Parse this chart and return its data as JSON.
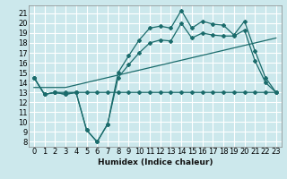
{
  "xlabel": "Humidex (Indice chaleur)",
  "bg_color": "#cce8ec",
  "grid_color": "#ffffff",
  "line_color": "#1a6b6b",
  "xlim": [
    -0.5,
    23.5
  ],
  "ylim": [
    7.5,
    21.8
  ],
  "xticks": [
    0,
    1,
    2,
    3,
    4,
    5,
    6,
    7,
    8,
    9,
    10,
    11,
    12,
    13,
    14,
    15,
    16,
    17,
    18,
    19,
    20,
    21,
    22,
    23
  ],
  "yticks": [
    8,
    9,
    10,
    11,
    12,
    13,
    14,
    15,
    16,
    17,
    18,
    19,
    20,
    21
  ],
  "line1_x": [
    0,
    1,
    2,
    3,
    4,
    5,
    6,
    7,
    8,
    9,
    10,
    11,
    12,
    13,
    14,
    15,
    16,
    17,
    18,
    19,
    20,
    21,
    22,
    23
  ],
  "line1_y": [
    14.5,
    12.8,
    13.0,
    12.8,
    13.0,
    9.2,
    8.0,
    9.8,
    15.0,
    16.7,
    18.3,
    19.5,
    19.7,
    19.5,
    21.3,
    19.5,
    20.2,
    19.9,
    19.8,
    18.8,
    20.2,
    17.2,
    14.5,
    13.0
  ],
  "line2_x": [
    0,
    3,
    23
  ],
  "line2_y": [
    13.5,
    13.5,
    18.5
  ],
  "line3_x": [
    0,
    1,
    2,
    3,
    4,
    5,
    6,
    7,
    8,
    9,
    10,
    11,
    12,
    13,
    14,
    15,
    16,
    17,
    18,
    19,
    20,
    21,
    22,
    23
  ],
  "line3_y": [
    14.5,
    12.8,
    13.0,
    12.8,
    13.0,
    9.2,
    8.0,
    9.8,
    14.5,
    15.8,
    17.0,
    18.0,
    18.3,
    18.2,
    20.0,
    18.5,
    19.0,
    18.8,
    18.7,
    18.7,
    19.3,
    16.2,
    14.0,
    13.0
  ],
  "line4_x": [
    0,
    1,
    2,
    3,
    4,
    5,
    6,
    7,
    8,
    9,
    10,
    11,
    12,
    13,
    14,
    15,
    16,
    17,
    18,
    19,
    20,
    21,
    22,
    23
  ],
  "line4_y": [
    14.5,
    12.8,
    13.0,
    13.0,
    13.0,
    13.0,
    13.0,
    13.0,
    13.0,
    13.0,
    13.0,
    13.0,
    13.0,
    13.0,
    13.0,
    13.0,
    13.0,
    13.0,
    13.0,
    13.0,
    13.0,
    13.0,
    13.0,
    13.0
  ],
  "font_size": 6.5
}
